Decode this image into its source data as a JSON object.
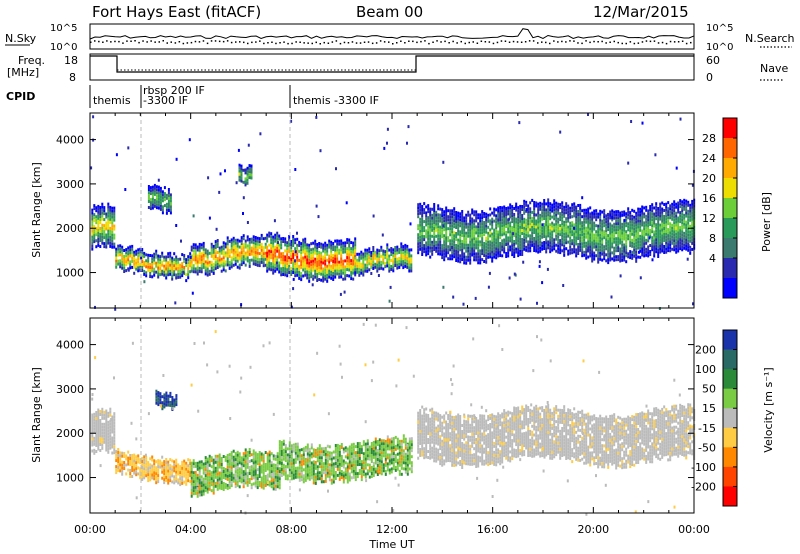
{
  "header": {
    "station": "Fort Hays East (fitACF)",
    "beam": "Beam 00",
    "date": "12/Mar/2015"
  },
  "summary_panels": {
    "nsky_label": "N.Sky",
    "nsearch_label": "N.Search",
    "noise_ticks": [
      "10^5",
      "10^0"
    ],
    "freq_label_line1": "Freq.",
    "freq_label_line2": "[MHz]",
    "freq_ticks": [
      "18",
      "8"
    ],
    "nave_label": "Nave",
    "nave_ticks": [
      "60",
      "0"
    ],
    "cpid_label": "CPID"
  },
  "cpid_segments": [
    {
      "start_hour": 0.0,
      "label": "themis",
      "label2": ""
    },
    {
      "start_hour": 2.0,
      "label": "rbsp 200 IF",
      "label2": "-3300 IF"
    },
    {
      "start_hour": 8.0,
      "label": "themis -3300 IF",
      "label2": ""
    }
  ],
  "chart_data": [
    {
      "type": "heatmap",
      "name": "power",
      "ylabel": "Slant Range [km]",
      "ylim": [
        200,
        4600
      ],
      "yticks": [
        1000,
        2000,
        3000,
        4000
      ],
      "xlim": [
        0,
        24
      ],
      "colorbar": {
        "label": "Power [dB]",
        "ticks": [
          28,
          24,
          20,
          16,
          12,
          8,
          4
        ],
        "colors": [
          "#ff0000",
          "#ff6600",
          "#ffaa00",
          "#eedd00",
          "#6ccf3a",
          "#2a9a5a",
          "#3b7a6e",
          "#2a2ab0",
          "#0000ff"
        ]
      },
      "regions": [
        {
          "t0": 0.05,
          "t1": 1.0,
          "r0": 1500,
          "r1": 2400,
          "level": "mid"
        },
        {
          "t0": 1.0,
          "t1": 4.0,
          "r0": 1000,
          "r1": 1500,
          "level": "high"
        },
        {
          "t0": 4.0,
          "t1": 7.0,
          "r0": 1050,
          "r1": 1700,
          "level": "high"
        },
        {
          "t0": 7.0,
          "t1": 10.5,
          "r0": 950,
          "r1": 1800,
          "level": "max"
        },
        {
          "t0": 10.5,
          "t1": 12.8,
          "r0": 1000,
          "r1": 1500,
          "level": "mid"
        },
        {
          "t0": 13.0,
          "t1": 24.0,
          "r0": 1400,
          "r1": 2500,
          "level": "low"
        },
        {
          "t0": 2.3,
          "t1": 3.2,
          "r0": 2500,
          "r1": 3000,
          "level": "low"
        },
        {
          "t0": 5.9,
          "t1": 6.4,
          "r0": 2900,
          "r1": 3300,
          "level": "low"
        }
      ]
    },
    {
      "type": "heatmap",
      "name": "velocity",
      "ylabel": "Slant Range [km]",
      "ylim": [
        200,
        4600
      ],
      "yticks": [
        1000,
        2000,
        3000,
        4000
      ],
      "xlim": [
        0,
        24
      ],
      "xlabel": "Time UT",
      "xticks": [
        "00:00",
        "04:00",
        "08:00",
        "12:00",
        "16:00",
        "20:00",
        "00:00"
      ],
      "colorbar": {
        "label": "Velocity [m s⁻¹]",
        "ticks": [
          200,
          100,
          50,
          15,
          -15,
          -50,
          -100,
          -200
        ],
        "colors": [
          "#1a33aa",
          "#2a6a66",
          "#2a8a3a",
          "#7acc44",
          "#bbbbbb",
          "#ffcc44",
          "#ff8800",
          "#ff4400",
          "#ff0000"
        ]
      },
      "regions": [
        {
          "t0": 0.05,
          "t1": 1.0,
          "r0": 1500,
          "r1": 2400,
          "class": "ground"
        },
        {
          "t0": 1.0,
          "t1": 4.0,
          "r0": 1000,
          "r1": 1500,
          "class": "negative"
        },
        {
          "t0": 4.0,
          "t1": 7.5,
          "r0": 700,
          "r1": 1500,
          "class": "positive"
        },
        {
          "t0": 7.5,
          "t1": 12.8,
          "r0": 1000,
          "r1": 1800,
          "class": "positive"
        },
        {
          "t0": 13.0,
          "t1": 24.0,
          "r0": 1400,
          "r1": 2500,
          "class": "ground"
        },
        {
          "t0": 2.6,
          "t1": 3.4,
          "r0": 2700,
          "r1": 3000,
          "class": "strong-positive"
        }
      ]
    }
  ]
}
